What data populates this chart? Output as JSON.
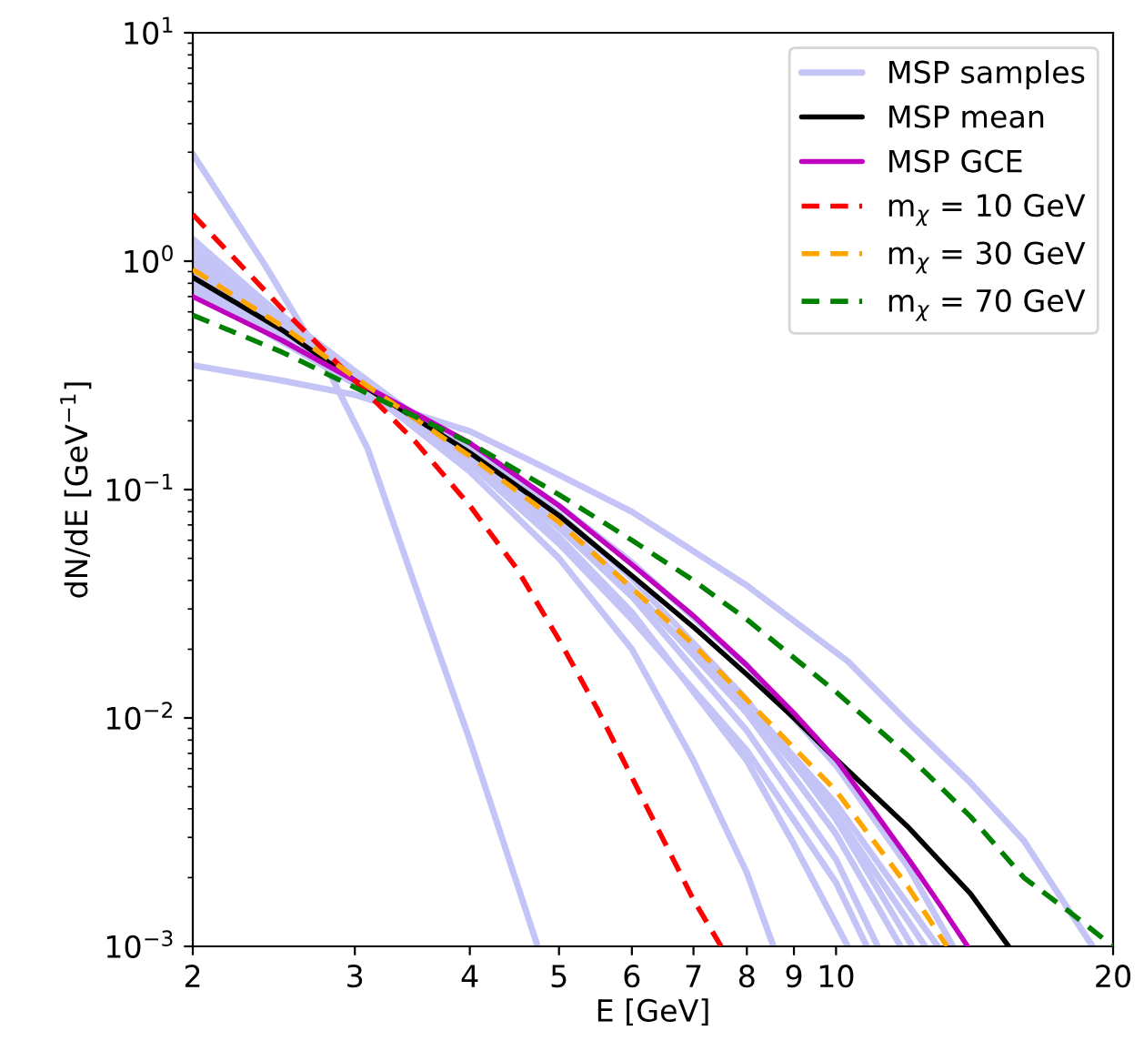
{
  "chart_data": {
    "type": "line",
    "xlabel": "E [GeV]",
    "ylabel": "dN/dE [GeV$^{−1}$]",
    "log": "xy",
    "grid": false,
    "legend": "top right",
    "xlim": [
      2,
      20
    ],
    "xticks": [
      2,
      3,
      4,
      5,
      6,
      7,
      8,
      9,
      10,
      20
    ],
    "ylim": [
      0.001,
      10
    ],
    "yticks": [
      {
        "value": 0.001,
        "label": "10$^{−3}$"
      },
      {
        "value": 0.01,
        "label": "10$^{−2}$"
      },
      {
        "value": 0.1,
        "label": "10$^{−1}$"
      },
      {
        "value": 1,
        "label": "10$^{0}$"
      },
      {
        "value": 10,
        "label": "10$^{1}$"
      }
    ],
    "series": [
      {
        "name": "MSP samples",
        "color": "#c4c4f7",
        "line_style": "solid",
        "x": [
          2,
          2.4,
          2.81,
          3.1,
          3.48,
          4.0,
          4.74
        ],
        "values": [
          2.95,
          0.95,
          0.33,
          0.15,
          0.039,
          0.008,
          0.001
        ]
      },
      {
        "color": "#c4c4f7",
        "line_style": "solid",
        "x": [
          2,
          2.5,
          3,
          4,
          4.84,
          6,
          8,
          10.3,
          12,
          14,
          16,
          18.3,
          19
        ],
        "values": [
          0.35,
          0.3,
          0.26,
          0.18,
          0.124,
          0.08,
          0.038,
          0.0177,
          0.0095,
          0.0052,
          0.0029,
          0.00126,
          0.001
        ]
      },
      {
        "color": "#c4c4f7",
        "line_style": "solid",
        "x": [
          2,
          3,
          4,
          5,
          6,
          7,
          8,
          8.55
        ],
        "values": [
          1.25,
          0.3,
          0.12,
          0.05,
          0.02,
          0.0065,
          0.0021,
          0.001
        ]
      },
      {
        "color": "#c4c4f7",
        "line_style": "solid",
        "x": [
          2,
          3,
          4,
          5,
          6,
          8,
          9,
          10.3
        ],
        "values": [
          1.1,
          0.32,
          0.135,
          0.062,
          0.029,
          0.0065,
          0.0028,
          0.001
        ]
      },
      {
        "color": "#c4c4f7",
        "line_style": "solid",
        "x": [
          2,
          3,
          4,
          5,
          6,
          8,
          10,
          11.1
        ],
        "values": [
          1.0,
          0.31,
          0.14,
          0.068,
          0.034,
          0.0088,
          0.0024,
          0.001
        ]
      },
      {
        "color": "#c4c4f7",
        "line_style": "solid",
        "x": [
          2,
          3,
          4,
          5,
          6,
          8,
          10,
          11.75
        ],
        "values": [
          0.95,
          0.31,
          0.145,
          0.072,
          0.037,
          0.0105,
          0.0031,
          0.001
        ]
      },
      {
        "color": "#c4c4f7",
        "line_style": "solid",
        "x": [
          2,
          3,
          4,
          5,
          6,
          8,
          10,
          12.1
        ],
        "values": [
          0.8,
          0.3,
          0.15,
          0.078,
          0.041,
          0.012,
          0.0036,
          0.001
        ]
      },
      {
        "color": "#c4c4f7",
        "line_style": "solid",
        "x": [
          2,
          3,
          4,
          5,
          6,
          8,
          10,
          12.9
        ],
        "values": [
          1.15,
          0.33,
          0.14,
          0.068,
          0.036,
          0.0115,
          0.0042,
          0.001
        ]
      },
      {
        "color": "#c4c4f7",
        "line_style": "solid",
        "x": [
          2,
          3,
          4,
          5,
          6,
          8,
          10,
          12.5
        ],
        "values": [
          0.75,
          0.29,
          0.14,
          0.07,
          0.036,
          0.011,
          0.0038,
          0.001
        ]
      },
      {
        "color": "#c4c4f7",
        "line_style": "solid",
        "x": [
          2,
          3,
          4,
          5,
          6,
          8,
          10,
          10.8
        ],
        "values": [
          1.05,
          0.31,
          0.13,
          0.058,
          0.027,
          0.0072,
          0.0019,
          0.001
        ]
      },
      {
        "color": "#c4c4f7",
        "line_style": "solid",
        "x": [
          2,
          3,
          4,
          5,
          6,
          8,
          10,
          12,
          13.4
        ],
        "values": [
          0.9,
          0.3,
          0.155,
          0.085,
          0.048,
          0.017,
          0.0062,
          0.0022,
          0.001
        ]
      },
      {
        "name": "MSP mean",
        "color": "#000000",
        "line_style": "solid",
        "x": [
          2,
          2.5,
          3,
          4,
          5,
          6,
          7,
          8,
          9,
          10,
          12,
          14,
          15.4
        ],
        "values": [
          0.85,
          0.5,
          0.3,
          0.145,
          0.077,
          0.042,
          0.025,
          0.0155,
          0.01,
          0.0066,
          0.0033,
          0.0017,
          0.001
        ]
      },
      {
        "name": "MSP GCE",
        "color": "#bf00bf",
        "line_style": "solid",
        "x": [
          2,
          2.5,
          3,
          4,
          5,
          6,
          7,
          8,
          9,
          10,
          11,
          12,
          13,
          13.9
        ],
        "values": [
          0.7,
          0.45,
          0.3,
          0.16,
          0.085,
          0.047,
          0.028,
          0.017,
          0.0105,
          0.0066,
          0.0039,
          0.0024,
          0.0015,
          0.001
        ]
      },
      {
        "name": "m$_{χ}$ = 10 GeV",
        "color": "#ff0000",
        "line_style": "dashed",
        "x": [
          2,
          2.5,
          3,
          3.5,
          4,
          4.5,
          5,
          5.5,
          6,
          6.5,
          7,
          7.5
        ],
        "values": [
          1.6,
          0.62,
          0.3,
          0.16,
          0.085,
          0.045,
          0.022,
          0.011,
          0.0055,
          0.0029,
          0.0016,
          0.001
        ]
      },
      {
        "name": "m$_{χ}$ = 30 GeV",
        "color": "#ffa500",
        "line_style": "dashed",
        "x": [
          2,
          2.5,
          3,
          4,
          5,
          6,
          7,
          8,
          10,
          12,
          13.2
        ],
        "values": [
          0.92,
          0.52,
          0.31,
          0.14,
          0.072,
          0.037,
          0.021,
          0.012,
          0.0048,
          0.0018,
          0.001
        ]
      },
      {
        "name": "m$_{χ}$ = 70 GeV",
        "color": "#008000",
        "line_style": "dashed",
        "x": [
          2,
          2.5,
          3,
          4,
          5,
          6,
          7,
          8,
          10,
          12,
          14,
          16,
          18,
          20
        ],
        "values": [
          0.58,
          0.4,
          0.28,
          0.16,
          0.095,
          0.06,
          0.04,
          0.027,
          0.013,
          0.0068,
          0.0037,
          0.002,
          0.0014,
          0.001
        ]
      }
    ]
  }
}
